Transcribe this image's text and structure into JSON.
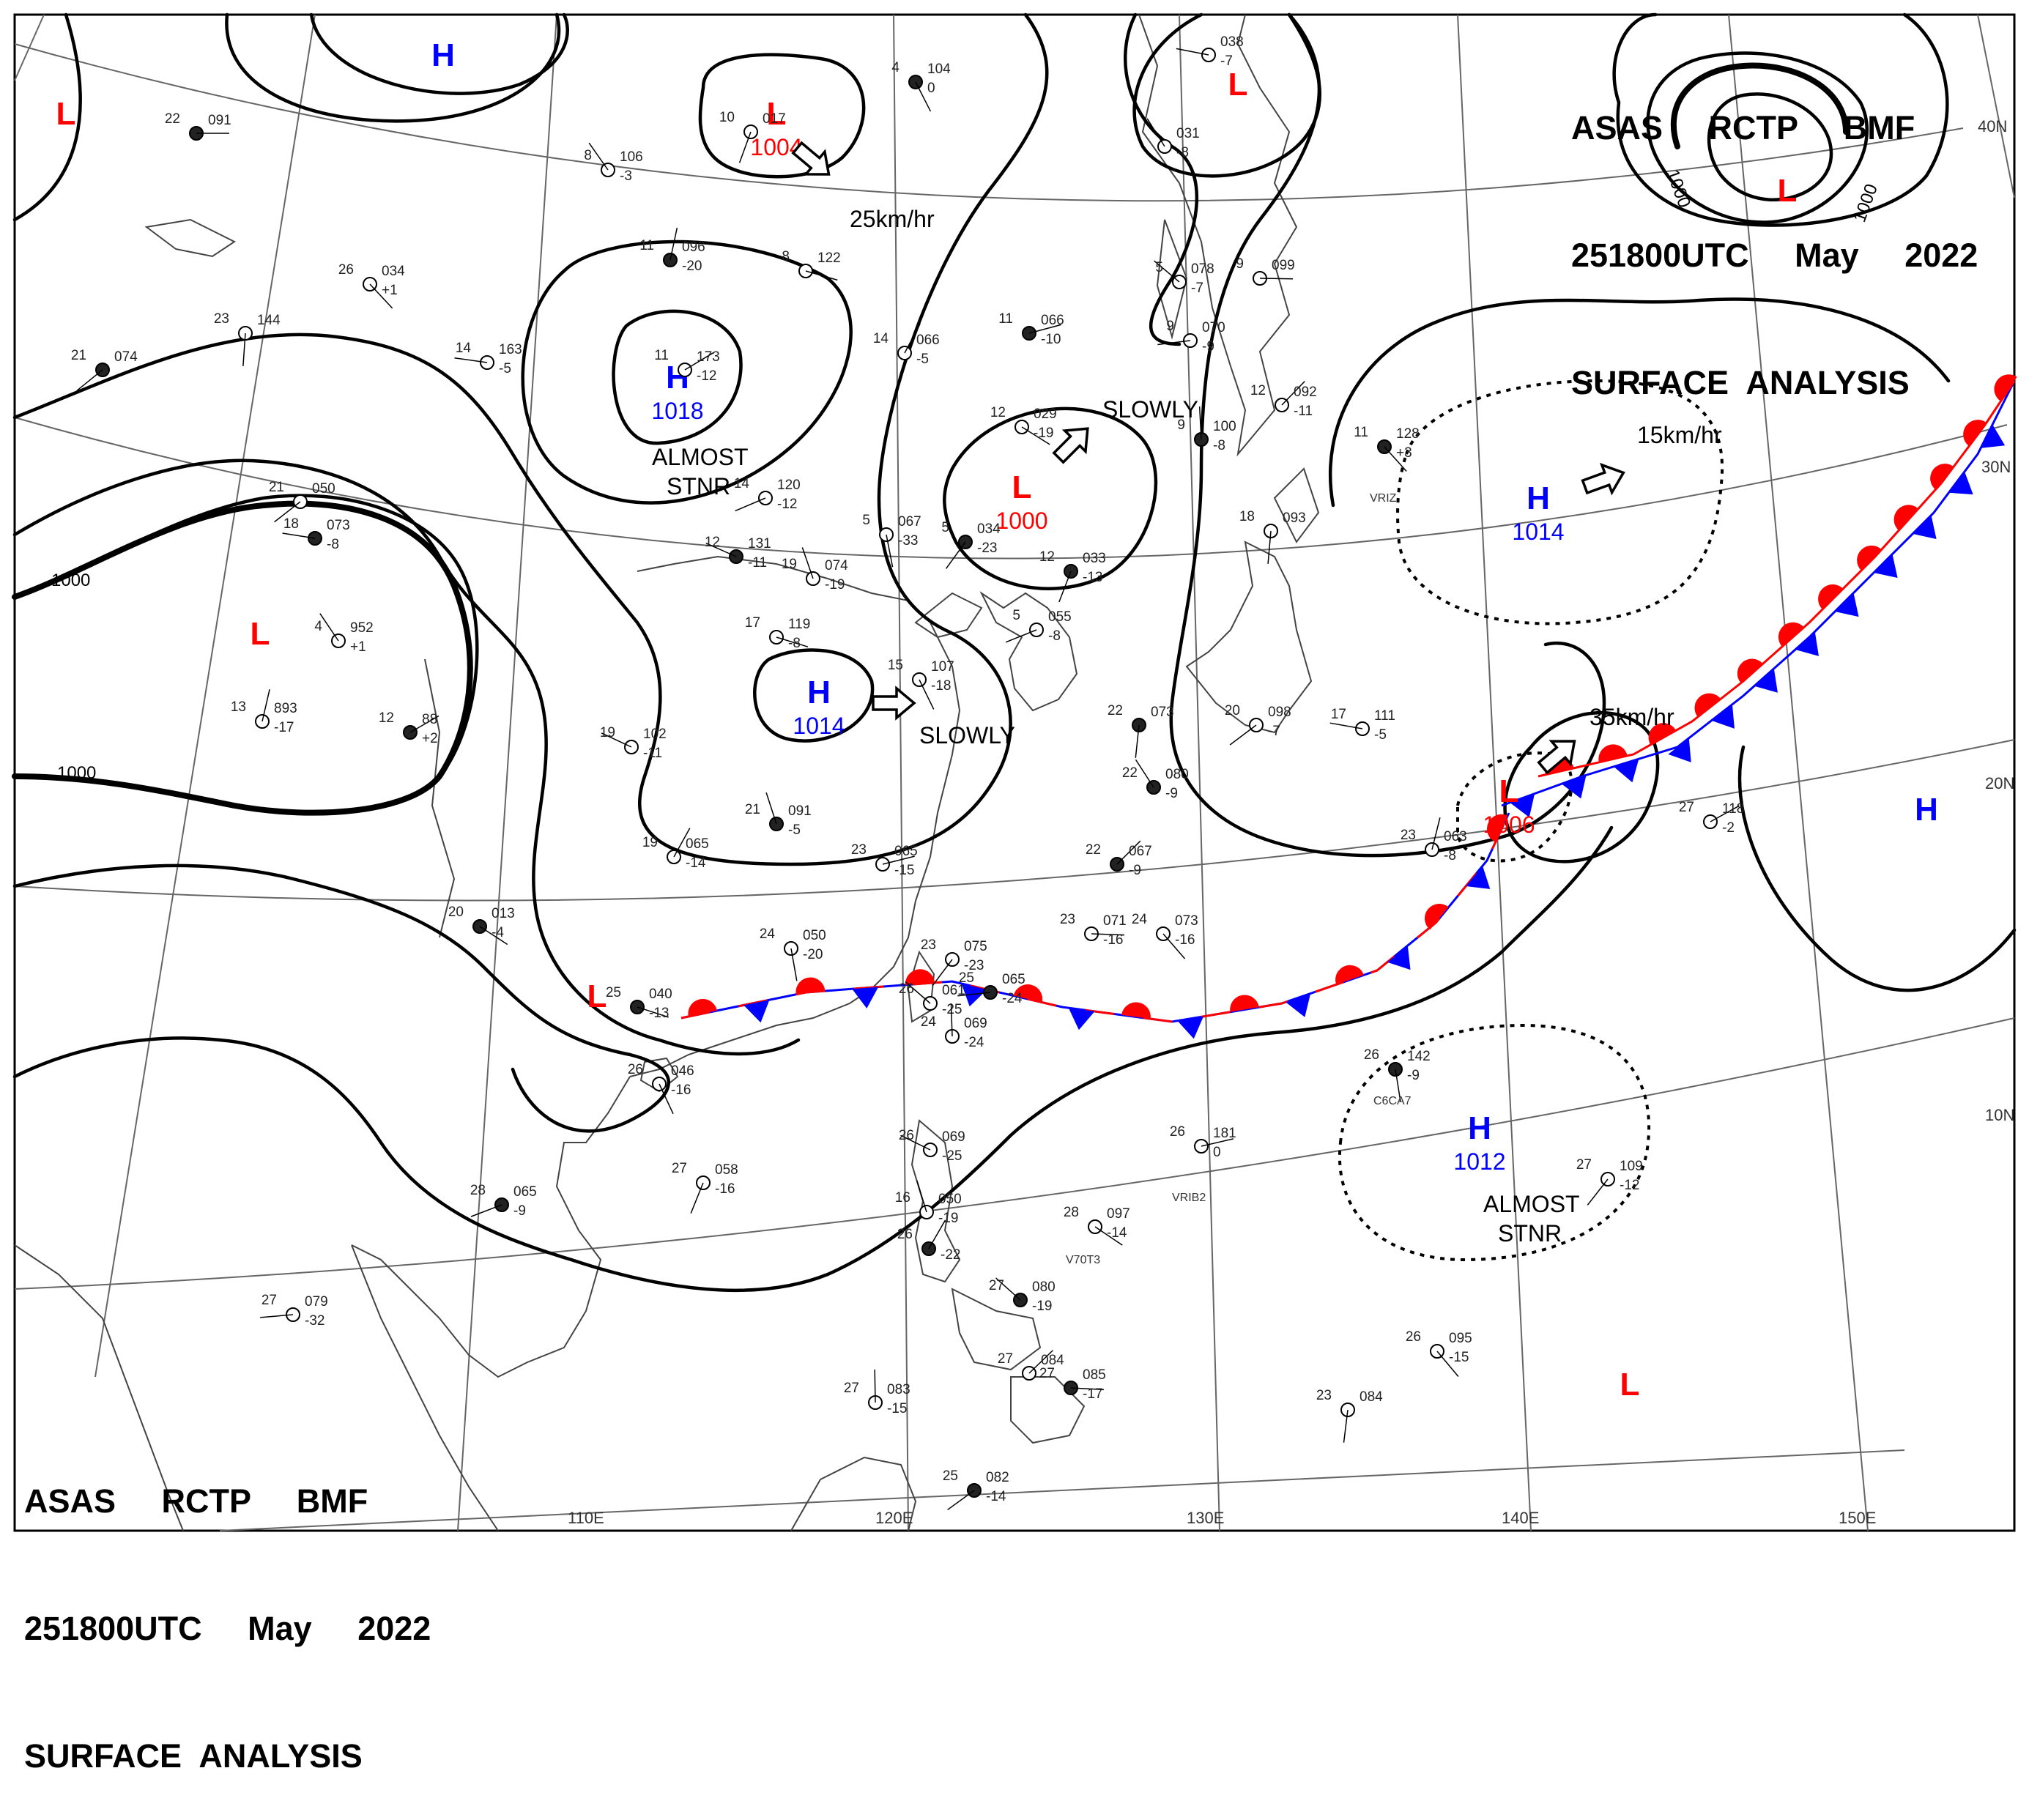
{
  "header": {
    "line1": "ASAS     RCTP     BMF",
    "line2": "251800UTC     May     2022",
    "line3": "SURFACE  ANALYSIS"
  },
  "footer": {
    "line1": "ASAS     RCTP     BMF",
    "line2": "251800UTC     May     2022",
    "line3": "SURFACE  ANALYSIS"
  },
  "colors": {
    "low": "#ff0000",
    "high": "#0000ff",
    "isobar": "#000000",
    "grid": "#555555",
    "coast": "#444444",
    "warm_front": "#ff0000",
    "cold_front": "#0000ff"
  },
  "longitude_labels": [
    "110E",
    "120E",
    "130E",
    "140E",
    "150E"
  ],
  "latitude_labels": [
    "40N",
    "30N",
    "20N",
    "10N"
  ],
  "isobar_labels": [
    "1000",
    "1000",
    "1000",
    "1000"
  ],
  "pressure_centers": [
    {
      "type": "L",
      "value": ""
    },
    {
      "type": "H",
      "value": ""
    },
    {
      "type": "L",
      "value": "1004"
    },
    {
      "type": "H",
      "value": "1018"
    },
    {
      "type": "L",
      "value": ""
    },
    {
      "type": "L",
      "value": "1000"
    },
    {
      "type": "L",
      "value": ""
    },
    {
      "type": "H",
      "value": "1014"
    },
    {
      "type": "H",
      "value": "1014"
    },
    {
      "type": "L",
      "value": ""
    },
    {
      "type": "L",
      "value": "1006"
    },
    {
      "type": "H",
      "value": ""
    },
    {
      "type": "H",
      "value": "1012"
    },
    {
      "type": "L",
      "value": ""
    },
    {
      "type": "L",
      "value": ""
    }
  ],
  "movements": [
    {
      "text": "25km/hr",
      "icon": "arrow-icon"
    },
    {
      "text": "SLOWLY",
      "icon": "arrow-icon"
    },
    {
      "text": "15km/hr",
      "icon": "arrow-icon"
    },
    {
      "text": "SLOWLY",
      "icon": "arrow-icon"
    },
    {
      "text": "35km/hr",
      "icon": "arrow-icon"
    },
    {
      "text": "ALMOST STNR",
      "icon": ""
    },
    {
      "text": "ALMOST STNR",
      "icon": ""
    }
  ],
  "stations": [
    {
      "temp": "22",
      "pres": "091",
      "tend": ""
    },
    {
      "temp": "26",
      "pres": "034",
      "tend": "+1"
    },
    {
      "temp": "23",
      "pres": "144",
      "tend": ""
    },
    {
      "temp": "21",
      "pres": "074",
      "tend": ""
    },
    {
      "temp": "14",
      "pres": "163",
      "tend": "-5"
    },
    {
      "temp": "8",
      "pres": "106",
      "tend": "-3"
    },
    {
      "temp": "11",
      "pres": "096",
      "tend": "-20"
    },
    {
      "temp": "11",
      "pres": "173",
      "tend": "-12"
    },
    {
      "temp": "8",
      "pres": "122",
      "tend": ""
    },
    {
      "temp": "4",
      "pres": "104",
      "tend": "0"
    },
    {
      "temp": "10",
      "pres": "017",
      "tend": ""
    },
    {
      "temp": "14",
      "pres": "120",
      "tend": "-12"
    },
    {
      "temp": "12",
      "pres": "131",
      "tend": "-11"
    },
    {
      "temp": "19",
      "pres": "074",
      "tend": "-19"
    },
    {
      "temp": "14",
      "pres": "066",
      "tend": "-5"
    },
    {
      "temp": "11",
      "pres": "066",
      "tend": "-10"
    },
    {
      "temp": "12",
      "pres": "029",
      "tend": "-19"
    },
    {
      "temp": "5",
      "pres": "067",
      "tend": "-33"
    },
    {
      "temp": "5",
      "pres": "034",
      "tend": "-23"
    },
    {
      "temp": "9",
      "pres": "070",
      "tend": "-9"
    },
    {
      "temp": "5",
      "pres": "078",
      "tend": "-7"
    },
    {
      "temp": "9",
      "pres": "100",
      "tend": "-8"
    },
    {
      "temp": "12",
      "pres": "092",
      "tend": "-11"
    },
    {
      "temp": "9",
      "pres": "099",
      "tend": ""
    },
    {
      "temp": "11",
      "pres": "128",
      "tend": "+3"
    },
    {
      "temp": "18",
      "pres": "093",
      "tend": ""
    },
    {
      "temp": "21",
      "pres": "050",
      "tend": ""
    },
    {
      "temp": "18",
      "pres": "073",
      "tend": "-8"
    },
    {
      "temp": "4",
      "pres": "952",
      "tend": "+1"
    },
    {
      "temp": "13",
      "pres": "893",
      "tend": "-17"
    },
    {
      "temp": "12",
      "pres": "88",
      "tend": "+2"
    },
    {
      "temp": "17",
      "pres": "119",
      "tend": "-8"
    },
    {
      "temp": "15",
      "pres": "107",
      "tend": "-18"
    },
    {
      "temp": "12",
      "pres": "033",
      "tend": "-13"
    },
    {
      "temp": "5",
      "pres": "055",
      "tend": "-8"
    },
    {
      "temp": "19",
      "pres": "102",
      "tend": "-11"
    },
    {
      "temp": "21",
      "pres": "091",
      "tend": "-5"
    },
    {
      "temp": "19",
      "pres": "065",
      "tend": "-14"
    },
    {
      "temp": "23",
      "pres": "065",
      "tend": "-15"
    },
    {
      "temp": "20",
      "pres": "013",
      "tend": "-4"
    },
    {
      "temp": "24",
      "pres": "050",
      "tend": "-20"
    },
    {
      "temp": "23",
      "pres": "075",
      "tend": "-23"
    },
    {
      "temp": "25",
      "pres": "065",
      "tend": "-24"
    },
    {
      "temp": "26",
      "pres": "061",
      "tend": "-25"
    },
    {
      "temp": "24",
      "pres": "069",
      "tend": "-24"
    },
    {
      "temp": "22",
      "pres": "067",
      "tend": "-9"
    },
    {
      "temp": "23",
      "pres": "071",
      "tend": "-16"
    },
    {
      "temp": "24",
      "pres": "073",
      "tend": "-16"
    },
    {
      "temp": "22",
      "pres": "073",
      "tend": ""
    },
    {
      "temp": "20",
      "pres": "098",
      "tend": "-7"
    },
    {
      "temp": "17",
      "pres": "111",
      "tend": "-5"
    },
    {
      "temp": "22",
      "pres": "080",
      "tend": "-9"
    },
    {
      "temp": "23",
      "pres": "063",
      "tend": "-8"
    },
    {
      "temp": "27",
      "pres": "118",
      "tend": "-2"
    },
    {
      "temp": "25",
      "pres": "040",
      "tend": "-13"
    },
    {
      "temp": "26",
      "pres": "046",
      "tend": "-16"
    },
    {
      "temp": "27",
      "pres": "058",
      "tend": "-16"
    },
    {
      "temp": "28",
      "pres": "065",
      "tend": "-9"
    },
    {
      "temp": "26",
      "pres": "069",
      "tend": "-25"
    },
    {
      "temp": "16",
      "pres": "050",
      "tend": "-19"
    },
    {
      "temp": "26",
      "pres": "",
      "tend": "-22"
    },
    {
      "temp": "26",
      "pres": "181",
      "tend": "0"
    },
    {
      "temp": "28",
      "pres": "097",
      "tend": "-14"
    },
    {
      "temp": "26",
      "pres": "142",
      "tend": "-9"
    },
    {
      "temp": "27",
      "pres": "109",
      "tend": "-12"
    },
    {
      "temp": "27",
      "pres": "079",
      "tend": "-32"
    },
    {
      "temp": "27",
      "pres": "080",
      "tend": "-19"
    },
    {
      "temp": "27",
      "pres": "083",
      "tend": "-15"
    },
    {
      "temp": "27",
      "pres": "084",
      "tend": ""
    },
    {
      "temp": "27",
      "pres": "085",
      "tend": "-17"
    },
    {
      "temp": "26",
      "pres": "095",
      "tend": "-15"
    },
    {
      "temp": "23",
      "pres": "084",
      "tend": ""
    },
    {
      "temp": "25",
      "pres": "082",
      "tend": "-14"
    },
    {
      "temp": "",
      "pres": "038",
      "tend": "-7"
    },
    {
      "temp": "",
      "pres": "031",
      "tend": "-8"
    }
  ],
  "ship_ids": [
    "VRIZ",
    "C6CA7",
    "VRIB2",
    "V70T3"
  ],
  "fronts": [
    {
      "type": "stationary",
      "name": "west-stationary-front"
    },
    {
      "type": "cold",
      "name": "east-cold-front"
    },
    {
      "type": "warm",
      "name": "east-warm-front"
    }
  ]
}
